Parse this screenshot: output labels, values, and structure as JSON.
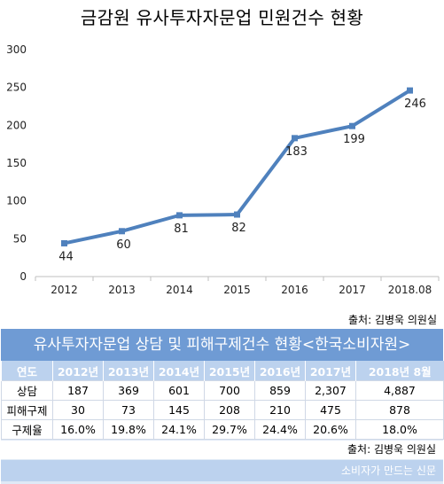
{
  "chart_data": {
    "type": "line",
    "title": "금감원 유사투자자문업 민원건수 현황",
    "categories": [
      "2012",
      "2013",
      "2014",
      "2015",
      "2016",
      "2017",
      "2018.08"
    ],
    "values": [
      44,
      60,
      81,
      82,
      183,
      199,
      246
    ],
    "ylim": [
      0,
      300
    ],
    "yticks": [
      0,
      50,
      100,
      150,
      200,
      250,
      300
    ],
    "xlabel": "",
    "ylabel": "",
    "grid": false,
    "line_color": "#4f81bd",
    "source": "출처: 김병욱 의원실"
  },
  "table": {
    "title": "유사투자자문업 상담 및 피해구제건수 현황<한국소비자원>",
    "headers": [
      "연도",
      "2012년",
      "2013년",
      "2014년",
      "2015년",
      "2016년",
      "2017년",
      "2018년 8월"
    ],
    "rows": [
      [
        "상담",
        "187",
        "369",
        "601",
        "700",
        "859",
        "2,307",
        "4,887"
      ],
      [
        "피해구제",
        "30",
        "73",
        "145",
        "208",
        "210",
        "475",
        "878"
      ],
      [
        "구제율",
        "16.0%",
        "19.8%",
        "24.1%",
        "29.7%",
        "24.4%",
        "20.6%",
        "18.0%"
      ]
    ],
    "source": "출처: 김병욱 의원실",
    "header_color": "#bcd2ee",
    "title_color": "#6f9bd4"
  },
  "footer": {
    "credit": "소비자가 만드는 신문"
  }
}
